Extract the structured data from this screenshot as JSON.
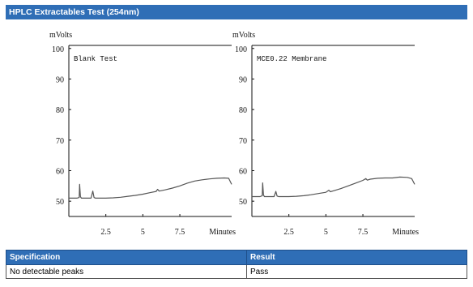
{
  "header": {
    "title": "HPLC Extractables Test (254nm)"
  },
  "chart_data": [
    {
      "type": "line",
      "annotation": "Blank Test",
      "ylabel": "mVolts",
      "xlabel": "Minutes",
      "xlim": [
        0,
        11
      ],
      "ylim": [
        45,
        101
      ],
      "yticks": [
        50,
        60,
        70,
        80,
        90,
        100
      ],
      "xticks": [
        "2.5",
        "5",
        "7.5"
      ],
      "grid": false,
      "series": [
        {
          "x": [
            0,
            0.55,
            0.7,
            0.73,
            0.78,
            0.85,
            1.0,
            1.5,
            1.62,
            1.7,
            1.8,
            2.5,
            3.0,
            3.5,
            4.0,
            4.5,
            5.0,
            5.5,
            5.9,
            6.0,
            6.1,
            6.5,
            7.0,
            7.5,
            8.0,
            8.5,
            9.0,
            9.5,
            10.0,
            10.5,
            10.8,
            11.0
          ],
          "y": [
            51.0,
            51.0,
            51.2,
            55.5,
            51.5,
            51.0,
            51.0,
            51.0,
            53.3,
            51.2,
            51.0,
            51.0,
            51.1,
            51.3,
            51.6,
            51.9,
            52.3,
            52.8,
            53.2,
            53.9,
            53.3,
            53.7,
            54.3,
            55.0,
            55.9,
            56.6,
            57.0,
            57.3,
            57.5,
            57.6,
            57.5,
            55.5
          ]
        }
      ]
    },
    {
      "type": "line",
      "annotation": "MCE0.22 Membrane",
      "ylabel": "mVolts",
      "xlabel": "Minutes",
      "xlim": [
        0,
        11
      ],
      "ylim": [
        45,
        101
      ],
      "yticks": [
        50,
        60,
        70,
        80,
        90,
        100
      ],
      "xticks": [
        "2.5",
        "5",
        "7.5"
      ],
      "grid": false,
      "series": [
        {
          "x": [
            0,
            0.55,
            0.7,
            0.73,
            0.78,
            0.85,
            1.0,
            1.5,
            1.62,
            1.7,
            1.8,
            2.5,
            3.0,
            3.5,
            4.0,
            4.5,
            5.0,
            5.2,
            5.3,
            5.5,
            6.0,
            6.5,
            7.0,
            7.5,
            7.7,
            7.8,
            8.0,
            8.5,
            9.0,
            9.5,
            10.0,
            10.5,
            10.8,
            11.0
          ],
          "y": [
            51.5,
            51.5,
            51.8,
            56.0,
            52.0,
            51.5,
            51.5,
            51.5,
            53.2,
            51.7,
            51.5,
            51.5,
            51.6,
            51.8,
            52.1,
            52.5,
            52.9,
            53.6,
            53.1,
            53.4,
            54.1,
            55.0,
            55.9,
            56.8,
            57.4,
            56.9,
            57.2,
            57.5,
            57.6,
            57.6,
            57.9,
            57.8,
            57.4,
            55.5
          ]
        }
      ]
    }
  ],
  "spec_table": {
    "headers": [
      "Specification",
      "Result"
    ],
    "rows": [
      [
        "No detectable peaks",
        "Pass"
      ]
    ]
  },
  "colors": {
    "header_bg": "#2f6eb6",
    "header_text": "#ffffff",
    "trace": "#555555"
  }
}
